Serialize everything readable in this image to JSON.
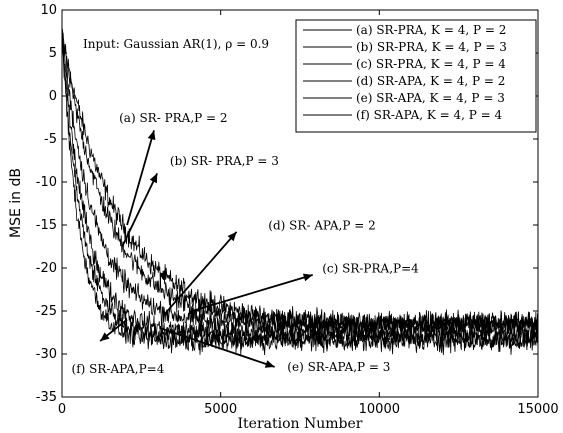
{
  "chart_data": {
    "type": "line",
    "title": "",
    "xlabel": "Iteration Number",
    "ylabel": "MSE in dB",
    "xlim": [
      0,
      15000
    ],
    "ylim": [
      -35,
      10
    ],
    "x_ticks": [
      0,
      5000,
      10000,
      15000
    ],
    "y_ticks": [
      10,
      5,
      0,
      -5,
      -10,
      -15,
      -20,
      -25,
      -30,
      -35
    ],
    "grid": false,
    "legend_position": "top-right",
    "input_annotation": "Input: Gaussian AR(1), ρ = 0.9",
    "series": [
      {
        "name": "(a) SR-PRA, K = 4, P = 2",
        "start_db": 7,
        "floor_db": -26.5,
        "reach_iter": 7500
      },
      {
        "name": "(b) SR-PRA, K = 4, P = 3",
        "start_db": 7,
        "floor_db": -26.5,
        "reach_iter": 6200
      },
      {
        "name": "(c) SR-PRA, K = 4, P = 4",
        "start_db": 7,
        "floor_db": -26.5,
        "reach_iter": 4300
      },
      {
        "name": "(d) SR-APA, K = 4, P = 2",
        "start_db": 7,
        "floor_db": -27.5,
        "reach_iter": 3200
      },
      {
        "name": "(e) SR-APA, K = 4, P = 3",
        "start_db": 7,
        "floor_db": -28,
        "reach_iter": 2700
      },
      {
        "name": "(f) SR-APA, K = 4, P = 4",
        "start_db": 7,
        "floor_db": -28.5,
        "reach_iter": 2300
      }
    ],
    "annotations": [
      {
        "label": "(a) SR- PRA,P = 2",
        "text_x": 1800,
        "text_y": -3,
        "arrow_to_x": 2900,
        "arrow_to_y": -4
      },
      {
        "label": "(b) SR- PRA,P = 3",
        "text_x": 3400,
        "text_y": -8,
        "arrow_to_x": 3000,
        "arrow_to_y": -9
      },
      {
        "label": "(d) SR- APA,P = 2",
        "text_x": 6500,
        "text_y": -15.5,
        "arrow_to_x": 5500,
        "arrow_to_y": -15.8
      },
      {
        "label": "(c) SR-PRA,P=4",
        "text_x": 8200,
        "text_y": -20.5,
        "arrow_to_x": 7900,
        "arrow_to_y": -20.8
      },
      {
        "label": "(e) SR-APA,P = 3",
        "text_x": 7100,
        "text_y": -32,
        "arrow_to_x": 6700,
        "arrow_to_y": -31.5
      },
      {
        "label": "(f) SR-APA,P=4",
        "text_x": 300,
        "text_y": -32.2,
        "arrow_to_x": 1200,
        "arrow_to_y": -28.5
      }
    ]
  }
}
